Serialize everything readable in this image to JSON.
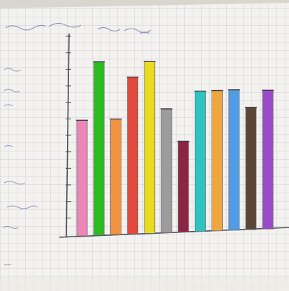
{
  "title": "",
  "chart_data": {
    "type": "bar",
    "title": "",
    "xlabel": "",
    "ylabel": "",
    "ylim": [
      0,
      12
    ],
    "grid": true,
    "categories": [
      "",
      "",
      "",
      "",
      "",
      "",
      "",
      "",
      "",
      "",
      "",
      "",
      ""
    ],
    "values": [
      7,
      10.5,
      7,
      9.5,
      10.4,
      7.5,
      5.5,
      8.5,
      8.5,
      8.5,
      7.4,
      8.4,
      0
    ],
    "colors": [
      "#ef86b8",
      "#2dbb22",
      "#f2923e",
      "#e2493c",
      "#eadc1c",
      "#9c9c9c",
      "#8b2544",
      "#2ec4bf",
      "#f0a640",
      "#4f9de4",
      "#5b4536",
      "#9b4bc8",
      "#ffffff"
    ],
    "bar_count_visible": 12
  }
}
